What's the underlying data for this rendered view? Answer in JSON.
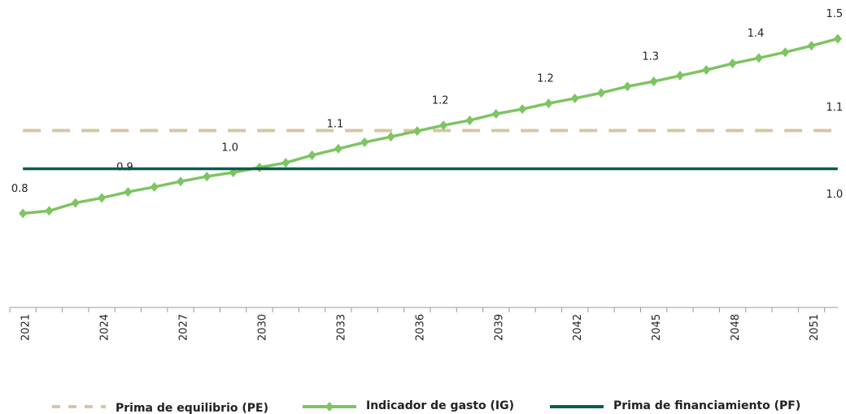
{
  "chart_data": {
    "type": "line",
    "categories": [
      "2021",
      null,
      null,
      "2024",
      null,
      null,
      "2027",
      null,
      null,
      "2030",
      null,
      null,
      "2033",
      null,
      null,
      "2036",
      null,
      null,
      "2039",
      null,
      null,
      "2042",
      null,
      null,
      "2045",
      null,
      null,
      "2048",
      null,
      null,
      "2051",
      null
    ],
    "ylim": [
      0.4,
      1.6
    ],
    "series": [
      {
        "name": "Prima de equilibrio (PE)",
        "color": "#d6c7a1",
        "dash": true,
        "values": [
          1.132,
          1.132,
          1.132,
          1.132,
          1.132,
          1.132,
          1.132,
          1.132,
          1.132,
          1.132,
          1.132,
          1.132,
          1.132,
          1.132,
          1.132,
          1.132,
          1.132,
          1.132,
          1.132,
          1.132,
          1.132,
          1.132,
          1.132,
          1.132,
          1.132,
          1.132,
          1.132,
          1.132,
          1.132,
          1.132,
          1.132,
          1.132
        ],
        "value_labels": [
          null,
          null,
          null,
          null,
          null,
          null,
          null,
          null,
          null,
          null,
          null,
          null,
          null,
          null,
          null,
          null,
          null,
          null,
          null,
          null,
          null,
          null,
          null,
          null,
          null,
          null,
          null,
          null,
          null,
          null,
          null,
          "1.1"
        ]
      },
      {
        "name": "Indicador de gasto (IG)",
        "color": "#7dc462",
        "markers": true,
        "values": [
          0.8,
          0.81,
          0.842,
          0.862,
          0.886,
          0.906,
          0.928,
          0.948,
          0.964,
          0.984,
          1.003,
          1.033,
          1.059,
          1.085,
          1.107,
          1.13,
          1.153,
          1.173,
          1.199,
          1.218,
          1.241,
          1.261,
          1.283,
          1.309,
          1.329,
          1.352,
          1.375,
          1.401,
          1.423,
          1.446,
          1.472,
          1.5
        ],
        "value_labels": [
          "0.8",
          null,
          null,
          null,
          "0.9",
          null,
          null,
          null,
          "1.0",
          null,
          null,
          null,
          "1.1",
          null,
          null,
          null,
          "1.2",
          null,
          null,
          null,
          "1.2",
          null,
          null,
          null,
          "1.3",
          null,
          null,
          null,
          "1.4",
          null,
          null,
          "1.5"
        ]
      },
      {
        "name": "Prima de financiamiento (PF)",
        "color": "#0b5c4d",
        "values": [
          0.979,
          0.979,
          0.979,
          0.979,
          0.979,
          0.979,
          0.979,
          0.979,
          0.979,
          0.979,
          0.979,
          0.979,
          0.979,
          0.979,
          0.979,
          0.979,
          0.979,
          0.979,
          0.979,
          0.979,
          0.979,
          0.979,
          0.979,
          0.979,
          0.979,
          0.979,
          0.979,
          0.979,
          0.979,
          0.979,
          0.979,
          0.979
        ],
        "value_labels": [
          null,
          null,
          null,
          null,
          null,
          null,
          null,
          null,
          null,
          null,
          null,
          null,
          null,
          null,
          null,
          null,
          null,
          null,
          null,
          null,
          null,
          null,
          null,
          null,
          null,
          null,
          null,
          null,
          null,
          null,
          null,
          "1.0"
        ]
      }
    ]
  }
}
